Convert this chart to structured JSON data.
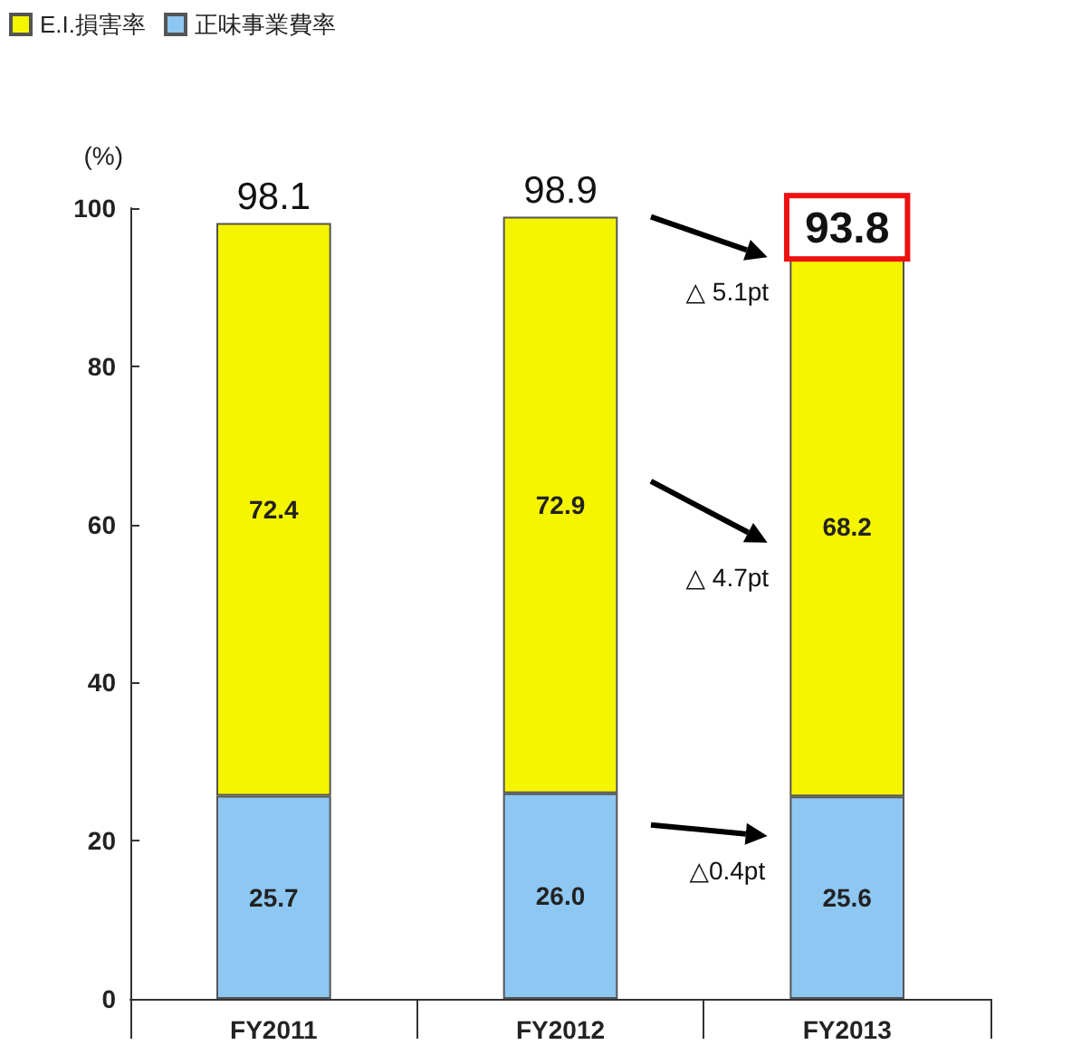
{
  "chart_data": {
    "type": "bar",
    "stacked": true,
    "categories": [
      "FY2011",
      "FY2012",
      "FY2013"
    ],
    "series": [
      {
        "name": "正味事業費率",
        "color": "#8ec7f2",
        "values": [
          25.7,
          26.0,
          25.6
        ],
        "value_labels": [
          "25.7",
          "26.0",
          "25.6"
        ]
      },
      {
        "name": "E.I.損害率",
        "color": "#f5f500",
        "values": [
          72.4,
          72.9,
          68.2
        ],
        "value_labels": [
          "72.4",
          "72.9",
          "68.2"
        ]
      }
    ],
    "totals": [
      "98.1",
      "98.9",
      "93.8"
    ],
    "ylabel": "(%)",
    "ylim": [
      0,
      100
    ],
    "yticks": [
      0,
      20,
      40,
      60,
      80,
      100
    ],
    "grid": false,
    "legend": "top left",
    "annotations": [
      "△ 5.1pt",
      "△ 4.7pt",
      "△0.4pt"
    ]
  }
}
